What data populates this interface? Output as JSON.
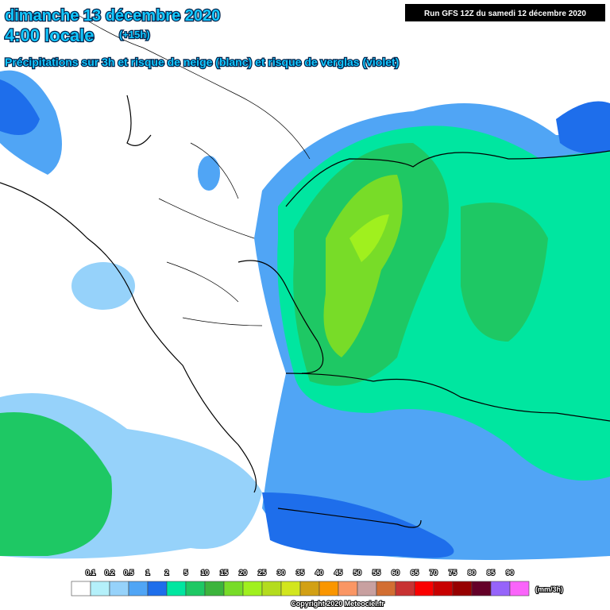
{
  "header": {
    "date": "dimanche 13 décembre 2020",
    "time": "4:00 locale",
    "lead": "(+15h)",
    "subtitle": "Précipitations sur 3h et risque de neige (blanc) et risque de verglas (violet)",
    "run": "Run GFS 12Z du samedi 12 décembre 2020"
  },
  "legend": {
    "unit": "(mm/3h)",
    "colors": [
      "#ffffff",
      "#b4f0fa",
      "#96d2fa",
      "#50a5f5",
      "#1e6eeb",
      "#00e6a0",
      "#1ec864",
      "#3cb43c",
      "#78dc28",
      "#a0f01e",
      "#b4dc1e",
      "#d2e61e",
      "#d2a014",
      "#fa9600",
      "#fa9664",
      "#c8a0a0",
      "#d26e32",
      "#c83232",
      "#fa0000",
      "#c80000",
      "#960000",
      "#640028",
      "#9664fa",
      "#fa64fa"
    ],
    "labels": [
      "0.1",
      "0.2",
      "0.5",
      "1",
      "2",
      "5",
      "10",
      "15",
      "20",
      "25",
      "30",
      "35",
      "40",
      "45",
      "50",
      "55",
      "60",
      "65",
      "70",
      "75",
      "80",
      "85",
      "90"
    ]
  },
  "footer": {
    "copyright": "Copyright 2020 Meteociel.fr"
  }
}
